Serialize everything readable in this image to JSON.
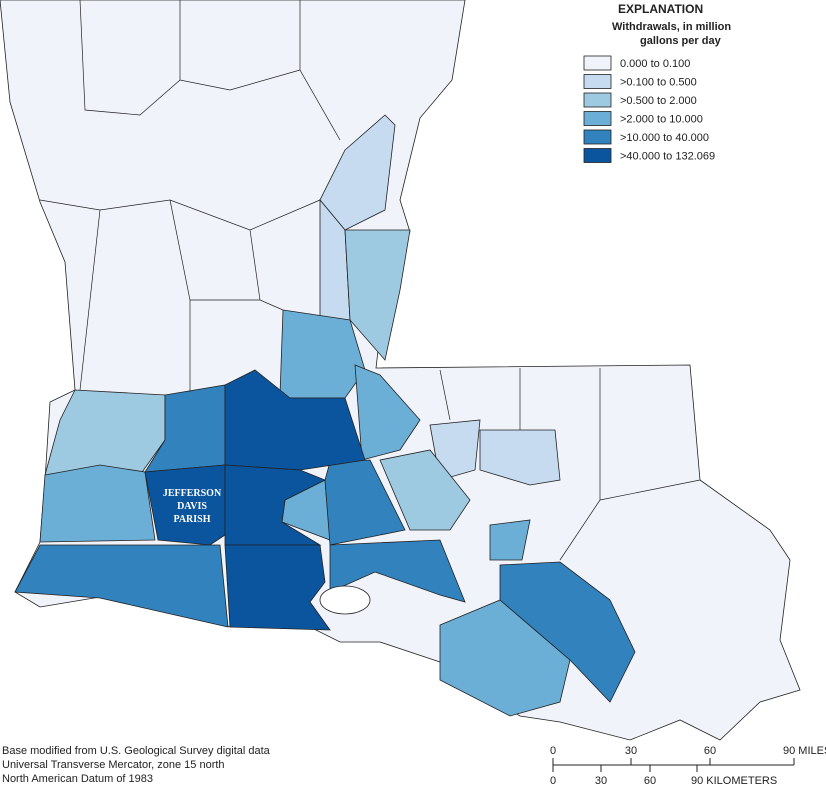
{
  "legend": {
    "title": "EXPLANATION",
    "subtitle_lines": [
      "Withdrawals, in million",
      "gallons per day"
    ],
    "classes": [
      {
        "label": "0.000 to 0.100",
        "color": "#f1f3fa"
      },
      {
        "label": ">0.100 to 0.500",
        "color": "#c6dbef"
      },
      {
        "label": ">0.500 to 2.000",
        "color": "#9ecae1"
      },
      {
        "label": ">2.000 to 10.000",
        "color": "#6baed6"
      },
      {
        "label": ">10.000 to 40.000",
        "color": "#3182bd"
      },
      {
        "label": ">40.000 to 132.069",
        "color": "#0b559f"
      }
    ]
  },
  "map_label": [
    "JEFFERSON",
    "DAVIS",
    "PARISH"
  ],
  "source_note": [
    "Base modified from U.S. Geological Survey digital data",
    "Universal Transverse Mercator, zone 15 north",
    "North American Datum of 1983"
  ],
  "scale_bar": {
    "miles": [
      "0",
      "30",
      "60",
      "90 MILES"
    ],
    "kilometers": [
      "0",
      "30",
      "60",
      "90 KILOMETERS"
    ]
  }
}
